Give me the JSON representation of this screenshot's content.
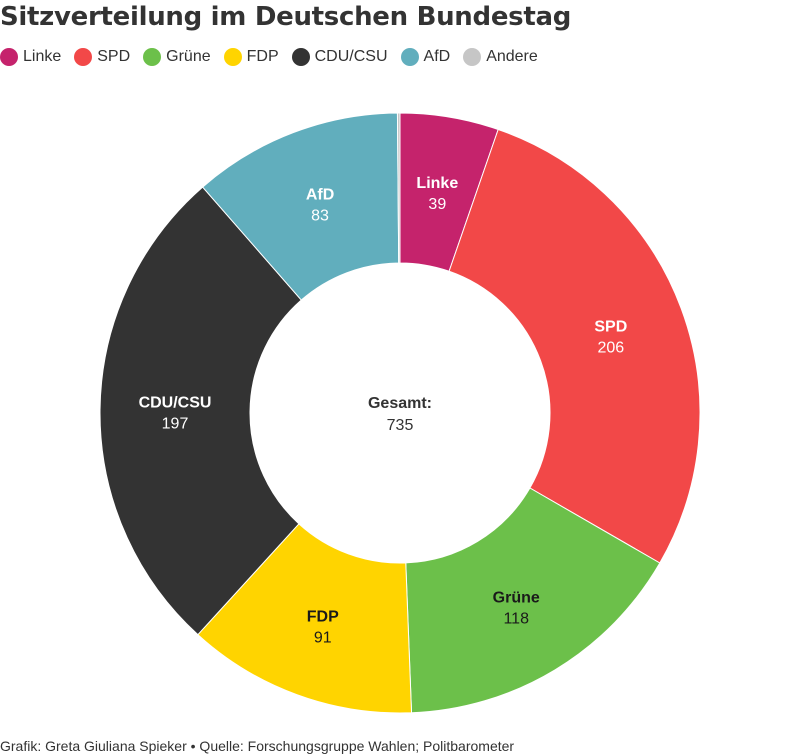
{
  "chart_data": {
    "type": "pie",
    "title": "Sitzverteilung im Deutschen Bundestag",
    "slices": [
      {
        "name": "Linke",
        "value": 39,
        "color": "#c5236c"
      },
      {
        "name": "SPD",
        "value": 206,
        "color": "#f24848"
      },
      {
        "name": "Grüne",
        "value": 118,
        "color": "#6cc04a"
      },
      {
        "name": "FDP",
        "value": 91,
        "color": "#ffd400"
      },
      {
        "name": "CDU/CSU",
        "value": 197,
        "color": "#333333"
      },
      {
        "name": "AfD",
        "value": 83,
        "color": "#61aebd"
      },
      {
        "name": "Andere",
        "value": 1,
        "color": "#c6c6c6"
      }
    ],
    "legend_placement": "top-left",
    "center_label": "Gesamt:",
    "center_value": "735"
  },
  "footer": "Grafik: Greta Giuliana Spieker • Quelle: Forschungsgruppe Wahlen; Politbarometer"
}
